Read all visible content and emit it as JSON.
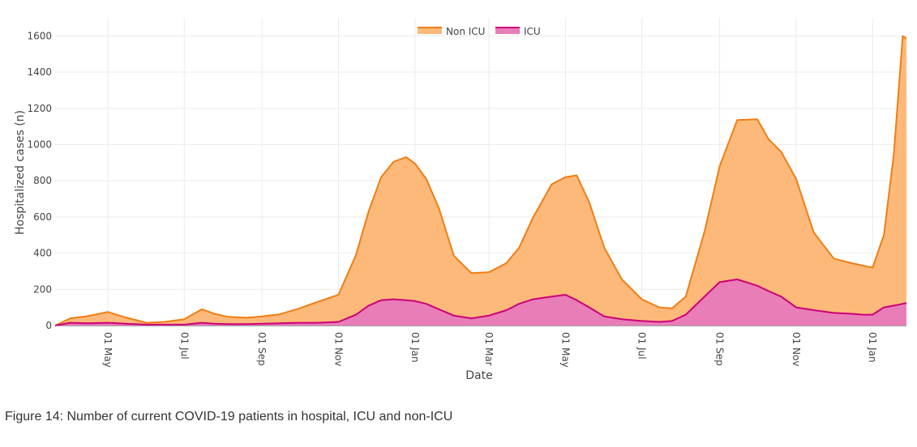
{
  "caption": "Figure 14: Number of current COVID-19 patients in hospital, ICU and non-ICU",
  "chart_data": {
    "type": "area",
    "stacked": true,
    "xlabel": "Date",
    "ylabel": "Hospitalized cases (n)",
    "ylim": [
      0,
      1700
    ],
    "xlim": [
      "2020-03-20",
      "2022-01-28"
    ],
    "y_ticks": [
      0,
      200,
      400,
      600,
      800,
      1000,
      1200,
      1400,
      1600
    ],
    "x_ticks": [
      {
        "date": "2020-05-01",
        "label": "01 May"
      },
      {
        "date": "2020-07-01",
        "label": "01 Jul"
      },
      {
        "date": "2020-09-01",
        "label": "01 Sep"
      },
      {
        "date": "2020-11-01",
        "label": "01 Nov"
      },
      {
        "date": "2021-01-01",
        "label": "01 Jan"
      },
      {
        "date": "2021-03-01",
        "label": "01 Mar"
      },
      {
        "date": "2021-05-01",
        "label": "01 May"
      },
      {
        "date": "2021-07-01",
        "label": "01 Jul"
      },
      {
        "date": "2021-09-01",
        "label": "01 Sep"
      },
      {
        "date": "2021-11-01",
        "label": "01 Nov"
      },
      {
        "date": "2022-01-01",
        "label": "01 Jan"
      }
    ],
    "grid": true,
    "legend_position": "top-center",
    "x": [
      "2020-03-20",
      "2020-04-01",
      "2020-04-15",
      "2020-05-01",
      "2020-05-15",
      "2020-06-01",
      "2020-06-15",
      "2020-07-01",
      "2020-07-15",
      "2020-07-25",
      "2020-08-05",
      "2020-08-20",
      "2020-09-01",
      "2020-09-15",
      "2020-10-01",
      "2020-10-15",
      "2020-11-01",
      "2020-11-15",
      "2020-11-25",
      "2020-12-05",
      "2020-12-15",
      "2020-12-25",
      "2021-01-01",
      "2021-01-10",
      "2021-01-20",
      "2021-02-01",
      "2021-02-15",
      "2021-03-01",
      "2021-03-15",
      "2021-03-25",
      "2021-04-05",
      "2021-04-20",
      "2021-05-01",
      "2021-05-10",
      "2021-05-20",
      "2021-06-01",
      "2021-06-15",
      "2021-07-01",
      "2021-07-15",
      "2021-07-25",
      "2021-08-05",
      "2021-08-20",
      "2021-09-01",
      "2021-09-15",
      "2021-10-01",
      "2021-10-10",
      "2021-10-20",
      "2021-11-01",
      "2021-11-15",
      "2021-12-01",
      "2021-12-15",
      "2021-12-25",
      "2022-01-01",
      "2022-01-10",
      "2022-01-18",
      "2022-01-25",
      "2022-01-28"
    ],
    "series": [
      {
        "name": "Non ICU",
        "color": "#f07e14",
        "fill": "#fdb97a",
        "values": [
          0,
          25,
          40,
          60,
          35,
          10,
          15,
          30,
          75,
          55,
          40,
          35,
          40,
          50,
          80,
          115,
          150,
          330,
          520,
          680,
          760,
          790,
          760,
          690,
          560,
          330,
          250,
          240,
          260,
          310,
          450,
          620,
          650,
          690,
          580,
          380,
          220,
          120,
          80,
          70,
          100,
          360,
          640,
          880,
          920,
          840,
          800,
          710,
          430,
          300,
          280,
          270,
          260,
          400,
          840,
          1480,
          1460
        ]
      },
      {
        "name": "ICU",
        "color": "#cc0077",
        "fill": "#e87db8",
        "values": [
          0,
          15,
          12,
          15,
          10,
          5,
          5,
          5,
          15,
          10,
          8,
          8,
          10,
          12,
          15,
          15,
          20,
          60,
          110,
          140,
          145,
          140,
          135,
          120,
          90,
          55,
          40,
          55,
          85,
          120,
          145,
          160,
          170,
          140,
          100,
          50,
          35,
          25,
          20,
          25,
          60,
          160,
          240,
          255,
          220,
          190,
          160,
          100,
          85,
          70,
          65,
          60,
          60,
          100,
          110,
          120,
          125
        ]
      }
    ]
  }
}
